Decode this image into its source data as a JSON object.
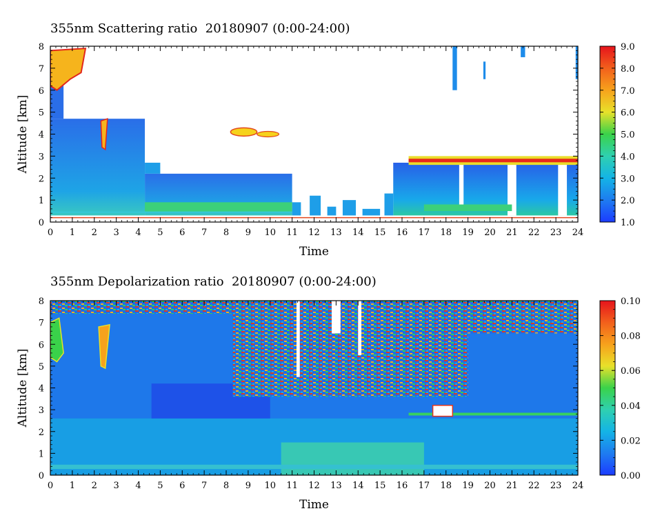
{
  "chart_data": [
    {
      "type": "heatmap",
      "title": "355nm Scattering ratio  20180907 (0:00-24:00)",
      "xlabel": "Time",
      "ylabel": "Altitude [km]",
      "x_ticks": [
        "0",
        "1",
        "2",
        "3",
        "4",
        "5",
        "6",
        "7",
        "8",
        "9",
        "10",
        "11",
        "12",
        "13",
        "14",
        "15",
        "16",
        "17",
        "18",
        "19",
        "20",
        "21",
        "22",
        "23",
        "24"
      ],
      "y_ticks": [
        "0",
        "1",
        "2",
        "3",
        "4",
        "5",
        "6",
        "7",
        "8"
      ],
      "xlim": [
        0,
        24
      ],
      "ylim": [
        0,
        8
      ],
      "colorbar": {
        "min": 1.0,
        "max": 9.0,
        "tick_labels": [
          "1.0",
          "2.0",
          "3.0",
          "4.0",
          "5.0",
          "6.0",
          "7.0",
          "8.0",
          "9.0"
        ]
      },
      "features": [
        {
          "desc": "boundary layer aerosol",
          "time_range": [
            0,
            11
          ],
          "altitude_range": [
            0.3,
            2.3
          ],
          "value": 2.2
        },
        {
          "desc": "morning aerosol layer",
          "time_range": [
            0,
            4.3
          ],
          "altitude_range": [
            0.3,
            4.7
          ],
          "value": 1.8
        },
        {
          "desc": "boundary layer aerosol",
          "time_range": [
            15.5,
            24
          ],
          "altitude_range": [
            0.3,
            2.8
          ],
          "value": 2.0
        },
        {
          "desc": "cloud layer",
          "time_range": [
            16.3,
            24
          ],
          "altitude_range": [
            2.6,
            3.0
          ],
          "value": 9.0
        }
      ]
    },
    {
      "type": "heatmap",
      "title": "355nm Depolarization ratio  20180907 (0:00-24:00)",
      "xlabel": "Time",
      "ylabel": "Altitude [km]",
      "x_ticks": [
        "0",
        "1",
        "2",
        "3",
        "4",
        "5",
        "6",
        "7",
        "8",
        "9",
        "10",
        "11",
        "12",
        "13",
        "14",
        "15",
        "16",
        "17",
        "18",
        "19",
        "20",
        "21",
        "22",
        "23",
        "24"
      ],
      "y_ticks": [
        "0",
        "1",
        "2",
        "3",
        "4",
        "5",
        "6",
        "7",
        "8"
      ],
      "xlim": [
        0,
        24
      ],
      "ylim": [
        0,
        8
      ],
      "colorbar": {
        "min": 0.0,
        "max": 0.1,
        "tick_labels": [
          "0.00",
          "0.02",
          "0.04",
          "0.06",
          "0.08",
          "0.10"
        ]
      },
      "features": [
        {
          "desc": "low depolarization background",
          "time_range": [
            0,
            24
          ],
          "altitude_range": [
            0,
            8
          ],
          "value": 0.01
        },
        {
          "desc": "noisy high-altitude signal",
          "time_range": [
            8,
            19
          ],
          "altitude_range": [
            3.5,
            8
          ],
          "value": 0.08
        },
        {
          "desc": "near-surface dust",
          "time_range": [
            10.5,
            17
          ],
          "altitude_range": [
            0,
            1.5
          ],
          "value": 0.035
        }
      ]
    }
  ]
}
